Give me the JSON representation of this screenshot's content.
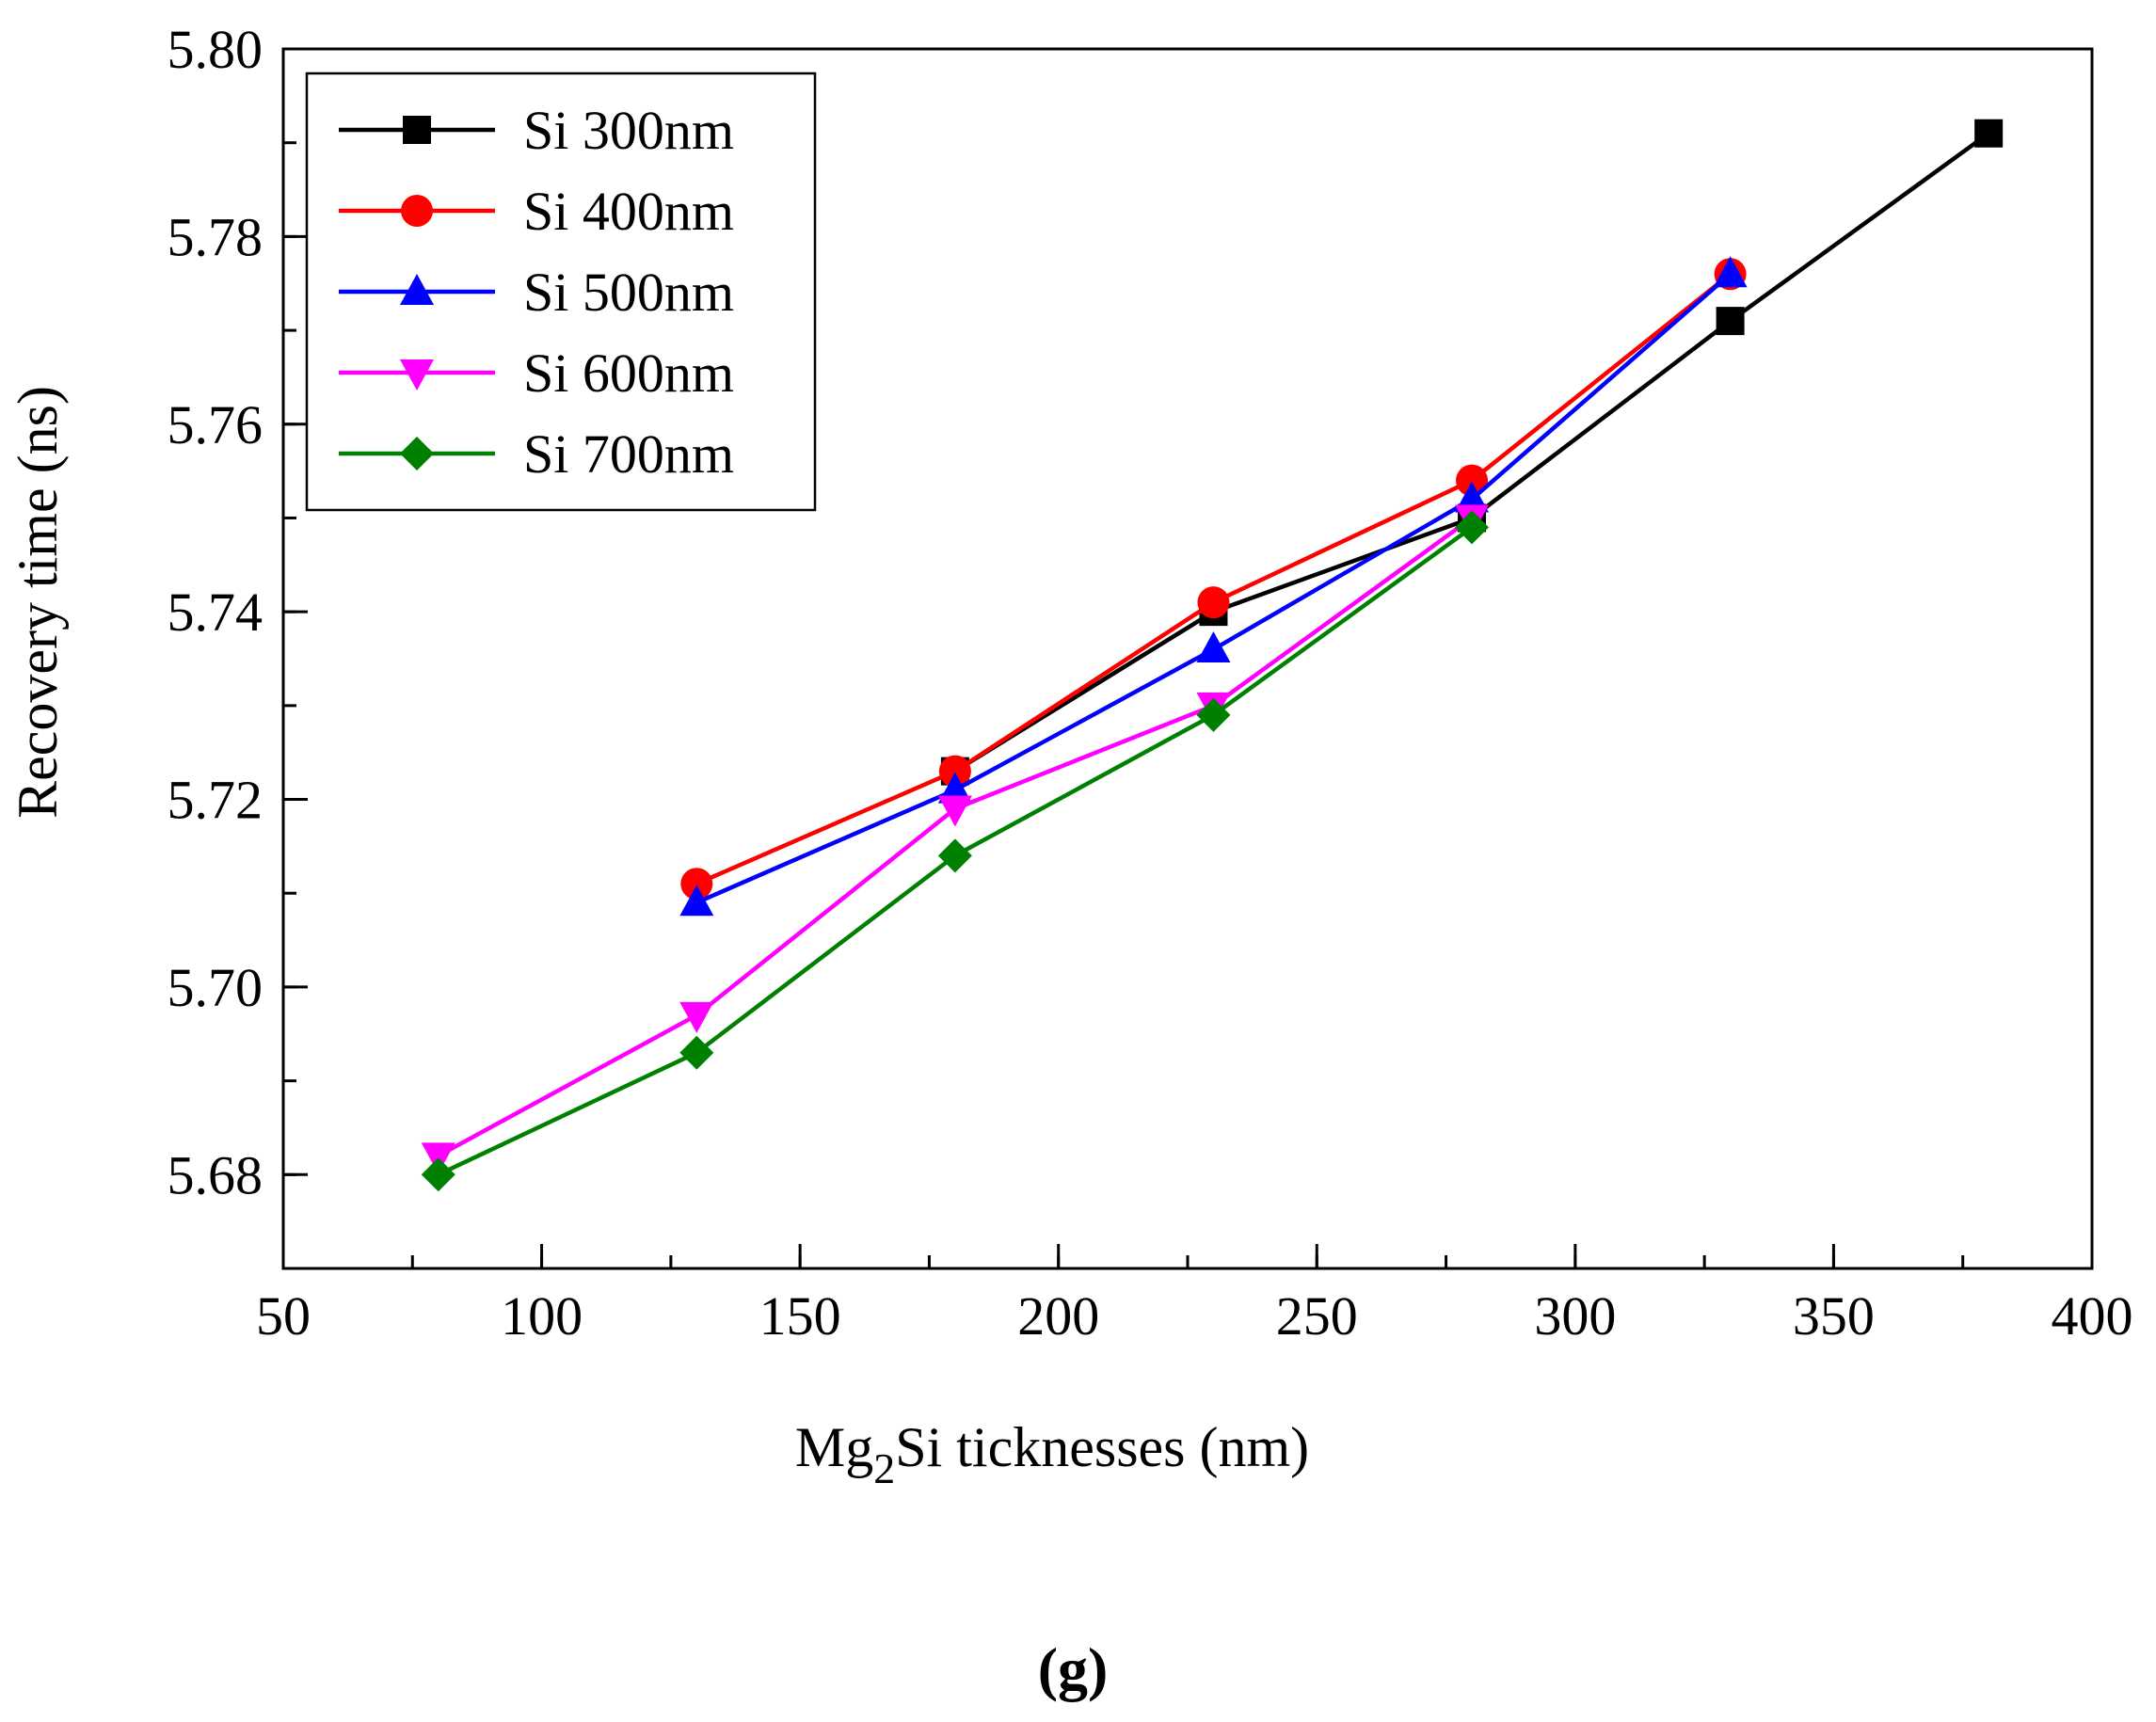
{
  "chart_data": {
    "type": "line",
    "title": "",
    "xlabel": {
      "main": "Mg",
      "sub": "2",
      "rest": "Si ticknesses (nm)"
    },
    "ylabel": "Recovery time (ns)",
    "xlim": [
      50,
      400
    ],
    "ylim": [
      5.67,
      5.8
    ],
    "x_ticks": [
      "50",
      "100",
      "150",
      "200",
      "250",
      "300",
      "350",
      "400"
    ],
    "x_tick_values": [
      50,
      100,
      150,
      200,
      250,
      300,
      350,
      400
    ],
    "y_ticks": [
      "5.68",
      "5.70",
      "5.72",
      "5.74",
      "5.76",
      "5.78",
      "5.80"
    ],
    "y_tick_values": [
      5.68,
      5.7,
      5.72,
      5.74,
      5.76,
      5.78,
      5.8
    ],
    "legend_position": "top-left",
    "series": [
      {
        "name": "Si 300nm",
        "color": "#000000",
        "marker": "square",
        "x": [
          180,
          230,
          280,
          330,
          380
        ],
        "y": [
          5.723,
          5.74,
          5.75,
          5.771,
          5.791
        ]
      },
      {
        "name": "Si 400nm",
        "color": "#ff0000",
        "marker": "circle",
        "x": [
          130,
          180,
          230,
          280,
          330
        ],
        "y": [
          5.711,
          5.723,
          5.741,
          5.754,
          5.776
        ]
      },
      {
        "name": "Si 500nm",
        "color": "#0000ff",
        "marker": "triangle-up",
        "x": [
          130,
          180,
          230,
          280,
          330
        ],
        "y": [
          5.709,
          5.721,
          5.736,
          5.752,
          5.776
        ]
      },
      {
        "name": "Si 600nm",
        "color": "#ff00ff",
        "marker": "triangle-down",
        "x": [
          80,
          130,
          180,
          230,
          280
        ],
        "y": [
          5.682,
          5.697,
          5.719,
          5.73,
          5.75
        ]
      },
      {
        "name": "Si 700nm",
        "color": "#008000",
        "marker": "diamond",
        "x": [
          80,
          130,
          180,
          230,
          280
        ],
        "y": [
          5.68,
          5.693,
          5.714,
          5.729,
          5.749
        ]
      }
    ]
  },
  "caption": "(g)"
}
